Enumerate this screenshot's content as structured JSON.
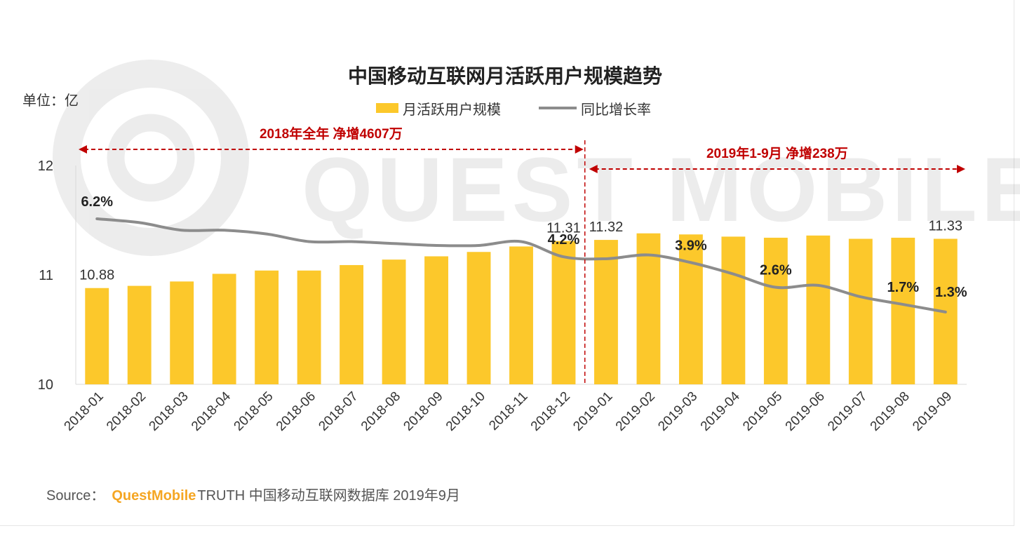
{
  "chart_data": {
    "type": "bar",
    "title": "中国移动互联网月活跃用户规模趋势",
    "unit_label": "单位：亿",
    "categories": [
      "2018-01",
      "2018-02",
      "2018-03",
      "2018-04",
      "2018-05",
      "2018-06",
      "2018-07",
      "2018-08",
      "2018-09",
      "2018-10",
      "2018-11",
      "2018-12",
      "2019-01",
      "2019-02",
      "2019-03",
      "2019-04",
      "2019-05",
      "2019-06",
      "2019-07",
      "2019-08",
      "2019-09"
    ],
    "series": [
      {
        "name": "月活跃用户规模",
        "type": "bar",
        "axis": "left",
        "values": [
          10.88,
          10.9,
          10.94,
          11.01,
          11.04,
          11.04,
          11.09,
          11.14,
          11.17,
          11.21,
          11.26,
          11.31,
          11.32,
          11.38,
          11.37,
          11.35,
          11.34,
          11.36,
          11.33,
          11.34,
          11.33
        ],
        "color": "#fcc82b"
      },
      {
        "name": "同比增长率",
        "type": "line",
        "axis": "right",
        "values": [
          6.2,
          6.0,
          5.6,
          5.6,
          5.4,
          5.0,
          5.0,
          4.9,
          4.8,
          4.8,
          5.0,
          4.2,
          4.1,
          4.3,
          3.9,
          3.3,
          2.6,
          2.7,
          2.1,
          1.7,
          1.3
        ],
        "unit": "%",
        "color": "#8c8c8c"
      }
    ],
    "ylim": [
      10,
      12
    ],
    "yticks": [
      "10",
      "11",
      "12"
    ],
    "y2lim": [
      -2.5,
      9
    ],
    "value_labels": [
      {
        "index": 0,
        "text": "10.88"
      },
      {
        "index": 11,
        "text": "11.31"
      },
      {
        "index": 12,
        "text": "11.32"
      },
      {
        "index": 20,
        "text": "11.33"
      }
    ],
    "rate_labels": [
      {
        "index": 0,
        "text": "6.2%"
      },
      {
        "index": 11,
        "text": "4.2%"
      },
      {
        "index": 14,
        "text": "3.9%"
      },
      {
        "index": 16,
        "text": "2.6%"
      },
      {
        "index": 19,
        "text": "1.7%"
      },
      {
        "index": 20,
        "text": "1.3%"
      }
    ],
    "periods": [
      {
        "label": "2018年全年 净增4607万",
        "from_index": 0,
        "to_index": 11
      },
      {
        "label": "2019年1-9月 净增238万",
        "from_index": 12,
        "to_index": 20
      }
    ],
    "annotation_color": "#c00000"
  },
  "watermark": "QUEST MOBILE",
  "source": {
    "prefix": "Source：",
    "brand": "QuestMobile",
    "text": "TRUTH 中国移动互联网数据库 2019年9月"
  }
}
